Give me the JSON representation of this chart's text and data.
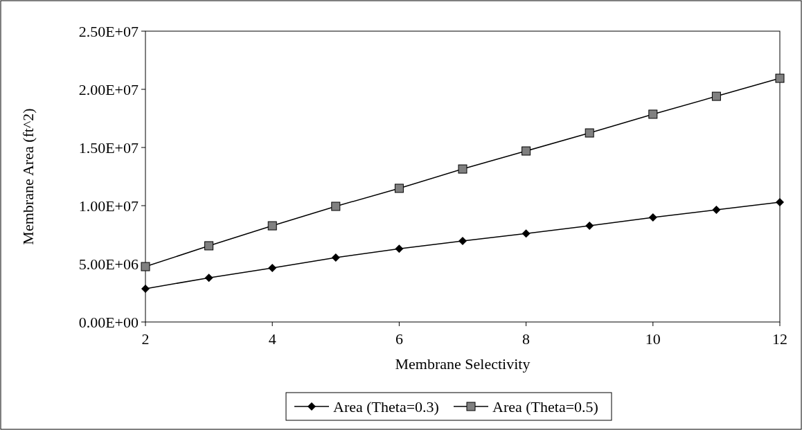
{
  "chart_data": {
    "type": "line",
    "xlabel": "Membrane Selectivity",
    "ylabel": "Membrane Area (ft^2)",
    "x": [
      2,
      3,
      4,
      5,
      6,
      7,
      8,
      9,
      10,
      11,
      12
    ],
    "series": [
      {
        "name": "Area (Theta=0.3)",
        "color": "#000000",
        "marker": "diamond",
        "values": [
          2860000.0,
          3800000.0,
          4640000.0,
          5540000.0,
          6300000.0,
          6960000.0,
          7600000.0,
          8270000.0,
          8990000.0,
          9640000.0,
          10300000.0
        ]
      },
      {
        "name": "Area (Theta=0.5)",
        "color": "#000000",
        "marker": "square",
        "values": [
          4760000.0,
          6550000.0,
          8270000.0,
          9940000.0,
          11490000.0,
          13150000.0,
          14700000.0,
          16250000.0,
          17860000.0,
          19400000.0,
          20950000.0
        ]
      }
    ],
    "xlim": [
      2,
      12
    ],
    "xticks": [
      2,
      4,
      6,
      8,
      10,
      12
    ],
    "ylim": [
      0,
      25000000
    ],
    "yticks": [
      {
        "value": 0,
        "label": "0.00E+00"
      },
      {
        "value": 5000000,
        "label": "5.00E+06"
      },
      {
        "value": 10000000,
        "label": "1.00E+07"
      },
      {
        "value": 15000000,
        "label": "1.50E+07"
      },
      {
        "value": 20000000,
        "label": "2.00E+07"
      },
      {
        "value": 25000000,
        "label": "2.50E+07"
      }
    ],
    "grid": false,
    "legend": "bottom",
    "line_style": "solid"
  }
}
